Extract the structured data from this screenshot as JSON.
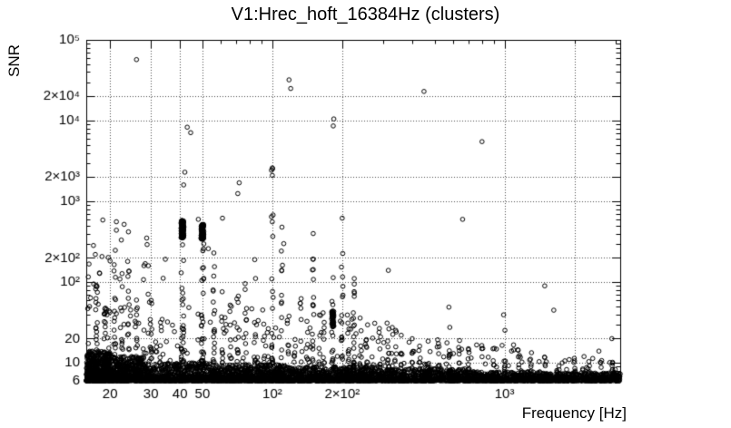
{
  "chart_data": {
    "type": "scatter",
    "title": "V1:Hrec_hoft_16384Hz (clusters)",
    "xlabel": "Frequency [Hz]",
    "ylabel": "SNR",
    "xscale": "log",
    "yscale": "log",
    "xlim": [
      15.8,
      3150
    ],
    "ylim": [
      6,
      100000
    ],
    "x_ticks": [
      {
        "v": 20,
        "label": "20"
      },
      {
        "v": 30,
        "label": "30"
      },
      {
        "v": 40,
        "label": "40"
      },
      {
        "v": 50,
        "label": "50"
      },
      {
        "v": 100,
        "label": "10²"
      },
      {
        "v": 200,
        "label": "2×10²"
      },
      {
        "v": 1000,
        "label": "10³"
      }
    ],
    "y_ticks": [
      {
        "v": 6,
        "label": "6"
      },
      {
        "v": 10,
        "label": "10"
      },
      {
        "v": 20,
        "label": "20"
      },
      {
        "v": 100,
        "label": "10²"
      },
      {
        "v": 200,
        "label": "2×10²"
      },
      {
        "v": 1000,
        "label": "10³"
      },
      {
        "v": 2000,
        "label": "2×10³"
      },
      {
        "v": 10000,
        "label": "10⁴"
      },
      {
        "v": 20000,
        "label": "2×10⁴"
      },
      {
        "v": 100000,
        "label": "10⁵"
      }
    ],
    "grid_x": [
      20,
      30,
      40,
      50,
      100,
      200,
      1000,
      2000
    ],
    "grid_y": [
      10,
      20,
      100,
      200,
      1000,
      2000,
      10000,
      20000
    ],
    "legend": "none",
    "grid": "dotted",
    "marker": {
      "shape": "open-circle",
      "radius": 2.3,
      "color": "#000000"
    },
    "noise_band": [
      {
        "f": [
          15.8,
          20
        ],
        "snr": [
          6,
          14
        ],
        "count": 550
      },
      {
        "f": [
          20,
          28
        ],
        "snr": [
          6,
          12
        ],
        "count": 500
      },
      {
        "f": [
          28,
          60
        ],
        "snr": [
          6,
          10
        ],
        "count": 700
      },
      {
        "f": [
          60,
          120
        ],
        "snr": [
          6,
          9.5
        ],
        "count": 700
      },
      {
        "f": [
          120,
          300
        ],
        "snr": [
          6,
          9
        ],
        "count": 800
      },
      {
        "f": [
          300,
          700
        ],
        "snr": [
          6,
          8.5
        ],
        "count": 600
      },
      {
        "f": [
          700,
          1500
        ],
        "snr": [
          6,
          7.8
        ],
        "count": 500
      },
      {
        "f": [
          1500,
          3150
        ],
        "snr": [
          6,
          7.5
        ],
        "count": 450
      }
    ],
    "sparse": [
      {
        "f": [
          16,
          35
        ],
        "snr": [
          10,
          200
        ],
        "count": 70
      },
      {
        "f": [
          16,
          30
        ],
        "snr": [
          200,
          600
        ],
        "count": 8
      },
      {
        "f": [
          35,
          120
        ],
        "snr": [
          10,
          50
        ],
        "count": 45
      },
      {
        "f": [
          120,
          400
        ],
        "snr": [
          9,
          35
        ],
        "count": 40
      },
      {
        "f": [
          400,
          1100
        ],
        "snr": [
          8,
          18
        ],
        "count": 30
      },
      {
        "f": [
          1100,
          3150
        ],
        "snr": [
          7,
          12
        ],
        "count": 25
      }
    ],
    "clusters": [
      {
        "f": 17.5,
        "count": 18,
        "snr": [
          10,
          110
        ]
      },
      {
        "f": 19,
        "count": 10,
        "snr": [
          10,
          60
        ]
      },
      {
        "f": 21,
        "count": 16,
        "snr": [
          10,
          250
        ]
      },
      {
        "f": 22.5,
        "count": 10,
        "snr": [
          10,
          150
        ]
      },
      {
        "f": 24,
        "count": 12,
        "snr": [
          10,
          200
        ]
      },
      {
        "f": 26,
        "count": 8,
        "snr": [
          10,
          80
        ]
      },
      {
        "f": 30,
        "count": 10,
        "snr": [
          10,
          60
        ]
      },
      {
        "f": 33,
        "count": 6,
        "snr": [
          10,
          40
        ]
      },
      {
        "f": 41,
        "count": 28,
        "snr": [
          10,
          320
        ],
        "fj": 0.006,
        "blob": {
          "snr": [
            350,
            580
          ],
          "count": 95
        }
      },
      {
        "f": 50,
        "count": 26,
        "snr": [
          10,
          300
        ],
        "fj": 0.006,
        "blob": {
          "snr": [
            340,
            520
          ],
          "count": 95
        }
      },
      {
        "f": 56,
        "count": 16,
        "snr": [
          10,
          240
        ]
      },
      {
        "f": 61,
        "count": 10,
        "snr": [
          10,
          90
        ]
      },
      {
        "f": 66,
        "count": 8,
        "snr": [
          10,
          60
        ]
      },
      {
        "f": 71,
        "count": 10,
        "snr": [
          10,
          160
        ]
      },
      {
        "f": 77,
        "count": 7,
        "snr": [
          10,
          120
        ]
      },
      {
        "f": 84,
        "count": 8,
        "snr": [
          10,
          200
        ]
      },
      {
        "f": 92,
        "count": 6,
        "snr": [
          10,
          50
        ]
      },
      {
        "f": 100,
        "count": 20,
        "snr": [
          10,
          3000
        ]
      },
      {
        "f": 110,
        "count": 10,
        "snr": [
          10,
          500
        ]
      },
      {
        "f": 117,
        "count": 7,
        "snr": [
          10,
          100
        ]
      },
      {
        "f": 125,
        "count": 6,
        "snr": [
          10,
          50
        ]
      },
      {
        "f": 133,
        "count": 7,
        "snr": [
          10,
          90
        ]
      },
      {
        "f": 141,
        "count": 6,
        "snr": [
          10,
          60
        ]
      },
      {
        "f": 150,
        "count": 14,
        "snr": [
          10,
          420
        ]
      },
      {
        "f": 160,
        "count": 6,
        "snr": [
          10,
          50
        ]
      },
      {
        "f": 166,
        "count": 7,
        "snr": [
          10,
          70
        ]
      },
      {
        "f": 182,
        "count": 14,
        "snr": [
          10,
          120
        ],
        "fj": 0.005,
        "blob": {
          "snr": [
            28,
            44
          ],
          "count": 40
        }
      },
      {
        "f": 200,
        "count": 14,
        "snr": [
          10,
          600
        ]
      },
      {
        "f": 212,
        "count": 8,
        "snr": [
          10,
          60
        ]
      },
      {
        "f": 225,
        "count": 22,
        "snr": [
          8,
          120
        ]
      },
      {
        "f": 240,
        "count": 8,
        "snr": [
          8,
          50
        ]
      },
      {
        "f": 255,
        "count": 8,
        "snr": [
          8,
          40
        ]
      },
      {
        "f": 270,
        "count": 7,
        "snr": [
          8,
          40
        ]
      },
      {
        "f": 290,
        "count": 6,
        "snr": [
          8,
          30
        ]
      },
      {
        "f": 315,
        "count": 9,
        "snr": [
          8,
          150
        ]
      },
      {
        "f": 340,
        "count": 6,
        "snr": [
          8,
          30
        ]
      },
      {
        "f": 360,
        "count": 7,
        "snr": [
          8,
          40
        ]
      },
      {
        "f": 400,
        "count": 8,
        "snr": [
          8,
          25
        ]
      },
      {
        "f": 430,
        "count": 6,
        "snr": [
          8,
          20
        ]
      },
      {
        "f": 470,
        "count": 7,
        "snr": [
          8,
          25
        ]
      },
      {
        "f": 520,
        "count": 6,
        "snr": [
          8,
          20
        ]
      },
      {
        "f": 580,
        "count": 8,
        "snr": [
          8,
          60
        ]
      },
      {
        "f": 640,
        "count": 6,
        "snr": [
          8,
          20
        ]
      },
      {
        "f": 700,
        "count": 6,
        "snr": [
          8,
          30
        ]
      },
      {
        "f": 800,
        "count": 6,
        "snr": [
          7,
          18
        ]
      },
      {
        "f": 900,
        "count": 6,
        "snr": [
          7,
          15
        ]
      },
      {
        "f": 1000,
        "count": 9,
        "snr": [
          7,
          40
        ]
      },
      {
        "f": 1150,
        "count": 7,
        "snr": [
          7,
          18
        ]
      },
      {
        "f": 1300,
        "count": 6,
        "snr": [
          7,
          14
        ]
      },
      {
        "f": 1500,
        "count": 6,
        "snr": [
          7,
          15
        ]
      },
      {
        "f": 1700,
        "count": 6,
        "snr": [
          7,
          12
        ]
      },
      {
        "f": 2000,
        "count": 7,
        "snr": [
          7,
          12
        ]
      },
      {
        "f": 2300,
        "count": 6,
        "snr": [
          7,
          11
        ]
      },
      {
        "f": 2600,
        "count": 6,
        "snr": [
          7,
          11
        ]
      },
      {
        "f": 2900,
        "count": 6,
        "snr": [
          7,
          12
        ]
      }
    ],
    "outliers": [
      [
        26,
        57000
      ],
      [
        118,
        32000
      ],
      [
        120,
        25000
      ],
      [
        450,
        23000
      ],
      [
        184,
        10500
      ],
      [
        183,
        8600
      ],
      [
        43,
        8300
      ],
      [
        44.5,
        7100
      ],
      [
        800,
        5500
      ],
      [
        42,
        2300
      ],
      [
        41.5,
        1600
      ],
      [
        72,
        1700
      ],
      [
        71,
        1250
      ],
      [
        100,
        2600
      ],
      [
        100,
        2100
      ],
      [
        21.3,
        560
      ],
      [
        21.3,
        440
      ],
      [
        23,
        520
      ],
      [
        48,
        600
      ],
      [
        61,
        620
      ],
      [
        660,
        600
      ],
      [
        53,
        260
      ],
      [
        150,
        400
      ],
      [
        200,
        620
      ],
      [
        316,
        140
      ],
      [
        1490,
        90
      ],
      [
        1630,
        45
      ],
      [
        2900,
        20
      ],
      [
        110,
        480
      ],
      [
        112,
        300
      ],
      [
        56,
        230
      ],
      [
        84,
        190
      ],
      [
        24,
        420
      ],
      [
        28,
        160
      ],
      [
        18,
        130
      ],
      [
        17,
        95
      ],
      [
        2550,
        14
      ],
      [
        2200,
        12
      ],
      [
        1900,
        11
      ]
    ]
  },
  "colors": {
    "foreground": "#000000",
    "background": "#ffffff",
    "grid": "#4a4a4a"
  }
}
